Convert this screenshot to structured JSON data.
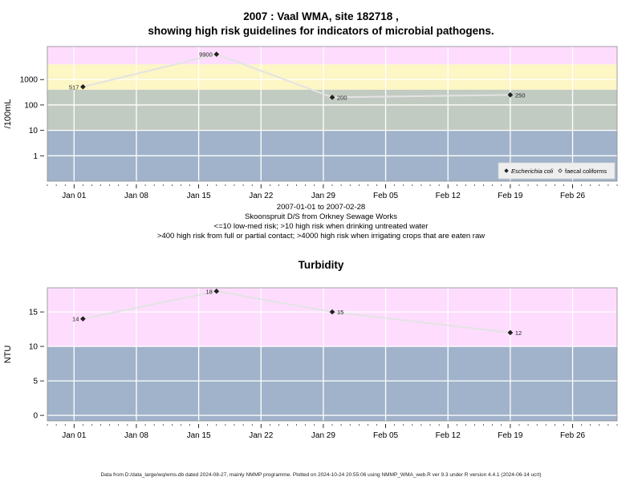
{
  "header": {
    "title_line1": "2007 : Vaal WMA, site 182718 ,",
    "title_line2": "showing high risk guidelines for indicators of microbial pathogens."
  },
  "chart1_caption": {
    "line1": "2007-01-01 to 2007-02-28",
    "line2": "Skoonspruit D/S from Orkney Sewage Works",
    "line3": "<=10 low-med risk; >10 high risk when drinking untreated water",
    "line4": ">400 high risk from full or partial contact; >4000 high risk when irrigating crops that are eaten raw"
  },
  "chart2_header": {
    "title": "Turbidity"
  },
  "footer": {
    "text": "Data from D:/data_large/wq/wms.db dated 2024-08-27, mainly NMMP programme. Plotted on 2024-10-24 20:55:06 using NMMP_WMA_web.R ver 9.3 under R version 4.4.1 (2024-06-14 ucrt)"
  },
  "colors": {
    "band_blue": "#a1b3cb",
    "band_grey": "#c2cbc2",
    "band_yellow": "#fdf6c5",
    "band_pink": "#fddcfd",
    "grid": "#ffffff",
    "line": "#e3e3e3",
    "marker": "#222222"
  },
  "chart_data": [
    {
      "type": "line",
      "title": "",
      "ylabel": "/100mL",
      "xlabel": "",
      "yscale": "log",
      "ylim": [
        0.1,
        20000
      ],
      "xlim": [
        "2006-12-29",
        "2007-03-03"
      ],
      "yticks": [
        1,
        10,
        100,
        1000
      ],
      "ytick_labels": [
        "1",
        "10",
        "100",
        "1000"
      ],
      "xticks": [
        "2007-01-01",
        "2007-01-08",
        "2007-01-15",
        "2007-01-22",
        "2007-01-29",
        "2007-02-05",
        "2007-02-12",
        "2007-02-19",
        "2007-02-26"
      ],
      "xtick_labels": [
        "Jan 01",
        "Jan 08",
        "Jan 15",
        "Jan 22",
        "Jan 29",
        "Feb 05",
        "Feb 12",
        "Feb 19",
        "Feb 26"
      ],
      "bands": [
        {
          "from": 0.1,
          "to": 10,
          "color": "band_blue"
        },
        {
          "from": 10,
          "to": 400,
          "color": "band_grey"
        },
        {
          "from": 400,
          "to": 4000,
          "color": "band_yellow"
        },
        {
          "from": 4000,
          "to": 20000,
          "color": "band_pink"
        }
      ],
      "grid": true,
      "legend_position": "bottom-right",
      "series": [
        {
          "name": "Escherichia coli",
          "marker": "filled-diamond",
          "x": [
            "2007-01-02",
            "2007-01-17",
            "2007-01-30",
            "2007-02-19"
          ],
          "y": [
            517,
            9900,
            200,
            250
          ],
          "labels": [
            "517",
            "9900",
            "200",
            "250"
          ],
          "label_side": [
            "left",
            "left",
            "right",
            "right"
          ]
        },
        {
          "name": "faecal coliforms",
          "marker": "open-diamond",
          "x": [],
          "y": [],
          "labels": [],
          "label_side": []
        }
      ]
    },
    {
      "type": "line",
      "title": "Turbidity",
      "ylabel": "NTU",
      "xlabel": "",
      "yscale": "linear",
      "ylim": [
        -0.8,
        18.5
      ],
      "xlim": [
        "2006-12-29",
        "2007-03-03"
      ],
      "yticks": [
        0,
        5,
        10,
        15
      ],
      "ytick_labels": [
        "0",
        "5",
        "10",
        "15"
      ],
      "xticks": [
        "2007-01-01",
        "2007-01-08",
        "2007-01-15",
        "2007-01-22",
        "2007-01-29",
        "2007-02-05",
        "2007-02-12",
        "2007-02-19",
        "2007-02-26"
      ],
      "xtick_labels": [
        "Jan 01",
        "Jan 08",
        "Jan 15",
        "Jan 22",
        "Jan 29",
        "Feb 05",
        "Feb 12",
        "Feb 19",
        "Feb 26"
      ],
      "bands": [
        {
          "from": -0.8,
          "to": 10,
          "color": "band_blue"
        },
        {
          "from": 10,
          "to": 18.5,
          "color": "band_pink"
        }
      ],
      "grid": true,
      "legend_position": "none",
      "series": [
        {
          "marker": "filled-diamond",
          "x": [
            "2007-01-02",
            "2007-01-17",
            "2007-01-30",
            "2007-02-19"
          ],
          "y": [
            14,
            18,
            15,
            12
          ],
          "labels": [
            "14",
            "18",
            "15",
            "12"
          ],
          "label_side": [
            "left",
            "left",
            "right",
            "right"
          ]
        }
      ]
    }
  ]
}
